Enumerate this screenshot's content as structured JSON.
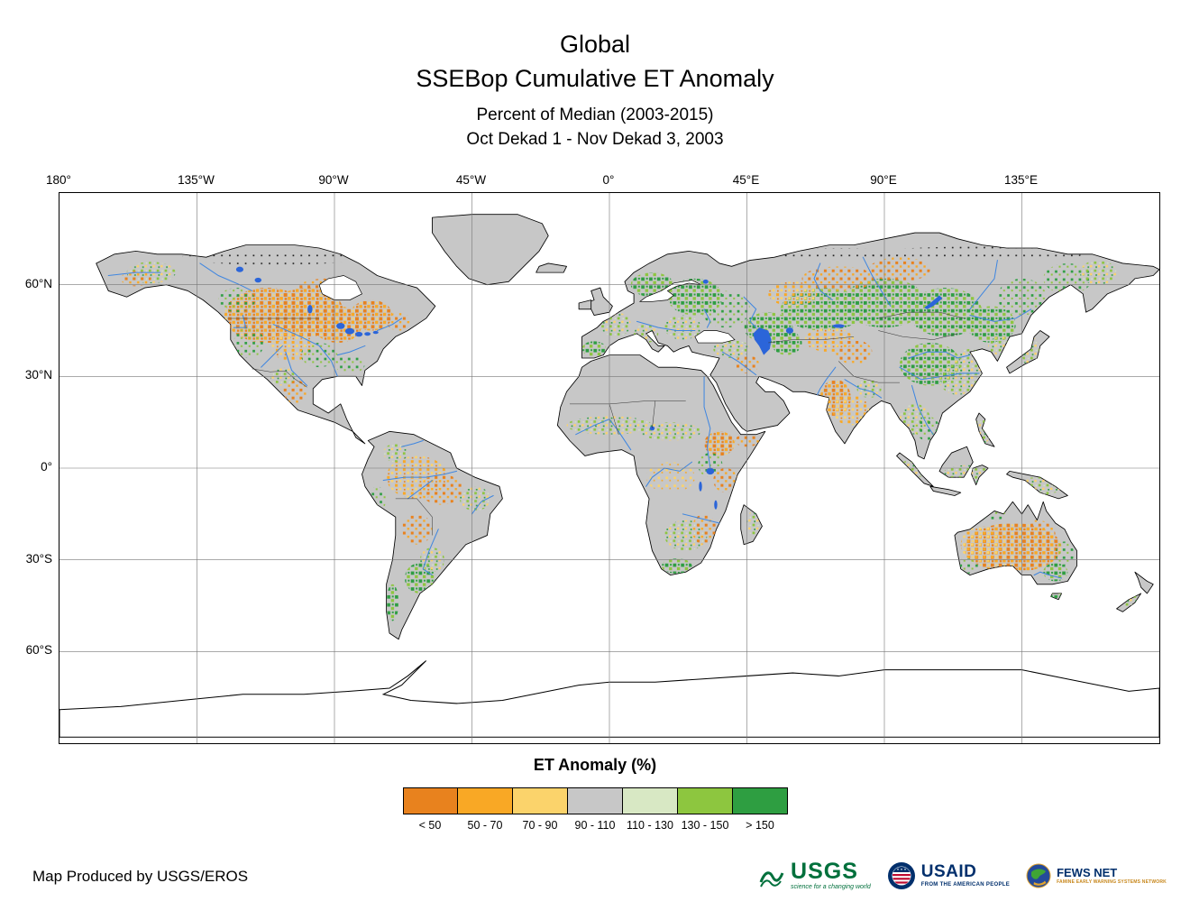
{
  "header": {
    "title_line1": "Global",
    "title_line2": "SSEBop Cumulative ET Anomaly",
    "subtitle_line1": "Percent of Median (2003-2015)",
    "subtitle_line2": "Oct Dekad 1 - Nov Dekad 3, 2003"
  },
  "map": {
    "lon_labels": [
      "180°",
      "135°W",
      "90°W",
      "45°W",
      "0°",
      "45°E",
      "90°E",
      "135°E"
    ],
    "lat_labels": [
      "60°N",
      "30°N",
      "0°",
      "30°S",
      "60°S"
    ],
    "ocean_color": "#FFFFFF",
    "land_color": "#C7C7C7",
    "water_color": "#2B65D9",
    "river_color": "#3F86E0"
  },
  "legend": {
    "title": "ET Anomaly (%)",
    "items": [
      {
        "label": "< 50",
        "color": "#E8821E"
      },
      {
        "label": "50 - 70",
        "color": "#F9A825"
      },
      {
        "label": "70 - 90",
        "color": "#FBD36B"
      },
      {
        "label": "90 - 110",
        "color": "#C7C7C7"
      },
      {
        "label": "110 - 130",
        "color": "#D8E8C4"
      },
      {
        "label": "130 - 150",
        "color": "#8DC63F"
      },
      {
        "label": "> 150",
        "color": "#2E9E41"
      }
    ]
  },
  "footer": {
    "credit": "Map Produced by USGS/EROS",
    "logos": {
      "usgs": {
        "text": "USGS",
        "tagline": "science for a changing world"
      },
      "usaid": {
        "text": "USAID",
        "tagline": "FROM THE AMERICAN PEOPLE"
      },
      "fewsnet": {
        "text": "FEWS NET",
        "tagline": "FAMINE EARLY WARNING SYSTEMS NETWORK"
      }
    }
  }
}
